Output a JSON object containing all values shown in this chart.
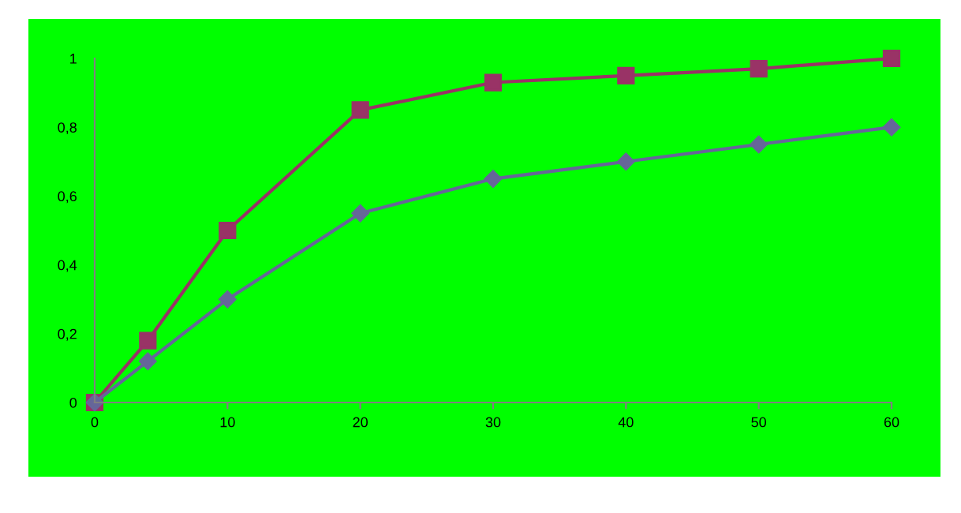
{
  "chart_data": {
    "type": "line",
    "x": [
      0,
      4,
      10,
      20,
      30,
      40,
      50,
      60
    ],
    "series": [
      {
        "color": "#993366",
        "marker": "square",
        "values": [
          0,
          0.18,
          0.5,
          0.85,
          0.93,
          0.95,
          0.97,
          1
        ]
      },
      {
        "color": "#666699",
        "marker": "diamond",
        "values": [
          0,
          0.12,
          0.3,
          0.55,
          0.65,
          0.7,
          0.75,
          0.8
        ]
      }
    ],
    "xlim": [
      0,
      60
    ],
    "xticks": [
      0,
      10,
      20,
      30,
      40,
      50,
      60
    ],
    "ylim": [
      0,
      1
    ],
    "yticks": [
      0,
      {
        "value": 0.2,
        "label": "0,2"
      },
      {
        "value": 0.4,
        "label": "0,4"
      },
      {
        "value": 0.6,
        "label": "0,6"
      },
      {
        "value": 0.8,
        "label": "0,8"
      },
      1
    ],
    "line_style": "solid"
  }
}
